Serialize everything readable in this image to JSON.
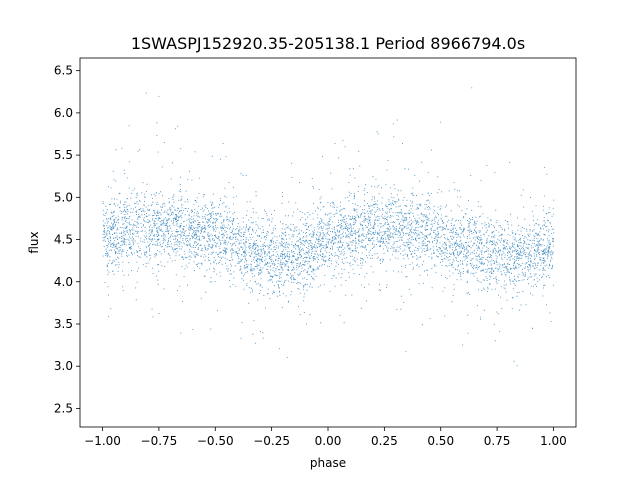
{
  "chart_data": {
    "type": "scatter",
    "title": "1SWASPJ152920.35-205138.1 Period 8966794.0s",
    "xlabel": "phase",
    "ylabel": "flux",
    "xlim": [
      -1.1,
      1.1
    ],
    "ylim": [
      2.28,
      6.65
    ],
    "xticks": [
      -1.0,
      -0.75,
      -0.5,
      -0.25,
      0.0,
      0.25,
      0.5,
      0.75,
      1.0
    ],
    "xtick_labels": [
      "−1.00",
      "−0.75",
      "−0.50",
      "−0.25",
      "0.00",
      "0.25",
      "0.50",
      "0.75",
      "1.00"
    ],
    "yticks": [
      2.5,
      3.0,
      3.5,
      4.0,
      4.5,
      5.0,
      5.5,
      6.0,
      6.5
    ],
    "ytick_labels": [
      "2.5",
      "3.0",
      "3.5",
      "4.0",
      "4.5",
      "5.0",
      "5.5",
      "6.0",
      "6.5"
    ],
    "grid": false,
    "marker_color": "#1f77b4",
    "series": [
      {
        "trend_phase": [
          -1.0,
          -0.9,
          -0.8,
          -0.7,
          -0.6,
          -0.5,
          -0.4,
          -0.3,
          -0.2,
          -0.1,
          0.0,
          0.1,
          0.2,
          0.3,
          0.4,
          0.5,
          0.6,
          0.7,
          0.8,
          0.9,
          1.0
        ],
        "trend_flux": [
          4.55,
          4.6,
          4.65,
          4.65,
          4.6,
          4.55,
          4.45,
          4.35,
          4.3,
          4.35,
          4.5,
          4.6,
          4.65,
          4.65,
          4.6,
          4.55,
          4.45,
          4.35,
          4.3,
          4.35,
          4.45
        ],
        "flux_spread": 0.3,
        "flux_min": 2.5,
        "flux_max": 6.45
      }
    ]
  }
}
